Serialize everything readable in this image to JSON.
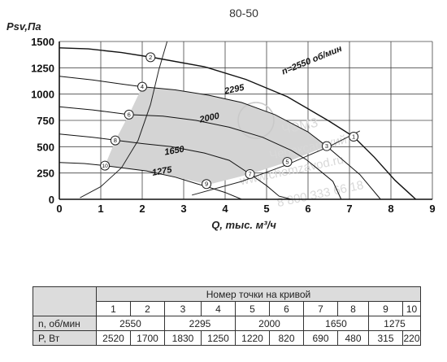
{
  "chart_data": {
    "type": "line",
    "title": "80-50",
    "xlabel": "Q, тыс. м³/ч",
    "ylabel": "Psv,Па",
    "xlim": [
      0,
      9
    ],
    "ylim": [
      0,
      1500
    ],
    "x_ticks": [
      "0",
      "1",
      "2",
      "3",
      "4",
      "5",
      "6",
      "7",
      "8",
      "9"
    ],
    "y_ticks": [
      "0",
      "250",
      "500",
      "750",
      "1000",
      "1250",
      "1500"
    ],
    "grid": true,
    "series": [
      {
        "name": "n=2550 об/мин",
        "points": [
          [
            0,
            1440
          ],
          [
            0.7,
            1430
          ],
          [
            1.5,
            1395
          ],
          [
            2.3,
            1345
          ],
          [
            3.5,
            1260
          ],
          [
            4.5,
            1140
          ],
          [
            5.5,
            975
          ],
          [
            6.5,
            745
          ],
          [
            7.1,
            595
          ],
          [
            7.6,
            400
          ],
          [
            8.1,
            180
          ],
          [
            8.6,
            0
          ]
        ]
      },
      {
        "name": "2295",
        "points": [
          [
            0,
            1170
          ],
          [
            0.8,
            1135
          ],
          [
            1.6,
            1090
          ],
          [
            2.0,
            1070
          ],
          [
            2.8,
            1040
          ],
          [
            3.6,
            990
          ],
          [
            4.4,
            920
          ],
          [
            5.2,
            805
          ],
          [
            6.0,
            640
          ],
          [
            6.45,
            505
          ],
          [
            6.85,
            370
          ],
          [
            7.25,
            235
          ],
          [
            7.75,
            0
          ]
        ]
      },
      {
        "name": "2000",
        "points": [
          [
            0,
            880
          ],
          [
            0.8,
            850
          ],
          [
            1.68,
            805
          ],
          [
            2.5,
            790
          ],
          [
            3.3,
            750
          ],
          [
            4.1,
            685
          ],
          [
            4.9,
            590
          ],
          [
            5.6,
            465
          ],
          [
            5.95,
            380
          ],
          [
            6.2,
            300
          ],
          [
            6.6,
            170
          ],
          [
            6.8,
            0
          ]
        ]
      },
      {
        "name": "1650",
        "points": [
          [
            0,
            620
          ],
          [
            0.8,
            590
          ],
          [
            1.4,
            560
          ],
          [
            2.0,
            530
          ],
          [
            2.7,
            500
          ],
          [
            3.5,
            440
          ],
          [
            4.1,
            370
          ],
          [
            4.6,
            240
          ],
          [
            5.0,
            130
          ],
          [
            5.3,
            30
          ],
          [
            5.6,
            0
          ]
        ]
      },
      {
        "name": "1275",
        "points": [
          [
            0,
            350
          ],
          [
            0.6,
            340
          ],
          [
            1.1,
            320
          ],
          [
            1.5,
            300
          ],
          [
            2.1,
            270
          ],
          [
            2.8,
            210
          ],
          [
            3.3,
            150
          ],
          [
            3.6,
            115
          ],
          [
            4.0,
            65
          ],
          [
            4.4,
            0
          ]
        ]
      }
    ],
    "system_curves": [
      {
        "points": [
          [
            0.5,
            15
          ],
          [
            1.0,
            120
          ],
          [
            1.5,
            300
          ],
          [
            1.9,
            560
          ],
          [
            2.2,
            900
          ],
          [
            2.4,
            1230
          ],
          [
            2.6,
            1500
          ]
        ]
      },
      {
        "points": [
          [
            3.2,
            40
          ],
          [
            4.4,
            170
          ],
          [
            5.5,
            330
          ],
          [
            6.5,
            500
          ],
          [
            7.25,
            650
          ]
        ]
      }
    ],
    "shaded_region": [
      [
        1.1,
        320
      ],
      [
        1.35,
        560
      ],
      [
        1.68,
        805
      ],
      [
        2.0,
        1070
      ],
      [
        2.8,
        1040
      ],
      [
        3.6,
        990
      ],
      [
        4.4,
        920
      ],
      [
        5.2,
        805
      ],
      [
        6.0,
        640
      ],
      [
        6.45,
        505
      ],
      [
        5.5,
        355
      ],
      [
        4.6,
        240
      ],
      [
        3.6,
        140
      ],
      [
        2.8,
        210
      ],
      [
        2.1,
        270
      ],
      [
        1.5,
        300
      ]
    ],
    "points": [
      {
        "label": "1",
        "x": 7.1,
        "y": 595
      },
      {
        "label": "2",
        "x": 2.2,
        "y": 1350
      },
      {
        "label": "3",
        "x": 6.45,
        "y": 505
      },
      {
        "label": "4",
        "x": 2.0,
        "y": 1070
      },
      {
        "label": "5",
        "x": 5.5,
        "y": 355
      },
      {
        "label": "6",
        "x": 1.68,
        "y": 805
      },
      {
        "label": "7",
        "x": 4.6,
        "y": 240
      },
      {
        "label": "8",
        "x": 1.35,
        "y": 560
      },
      {
        "label": "9",
        "x": 3.55,
        "y": 145
      },
      {
        "label": "10",
        "x": 1.1,
        "y": 320
      }
    ],
    "watermark": [
      "ЧЭМЗ",
      "Чебоксарский",
      "www.chemzavod.ru",
      "8 800 333 66 18"
    ]
  },
  "table": {
    "header": "Номер точки на кривой",
    "point_numbers": [
      "1",
      "2",
      "3",
      "4",
      "5",
      "6",
      "7",
      "8",
      "9",
      "10"
    ],
    "speed_label": "n, об/мин",
    "speeds": [
      "2550",
      "2295",
      "2000",
      "1650",
      "1275"
    ],
    "power_label": "P, Вт",
    "powers": [
      "2520",
      "1700",
      "1830",
      "1250",
      "1220",
      "820",
      "690",
      "480",
      "315",
      "220"
    ]
  }
}
